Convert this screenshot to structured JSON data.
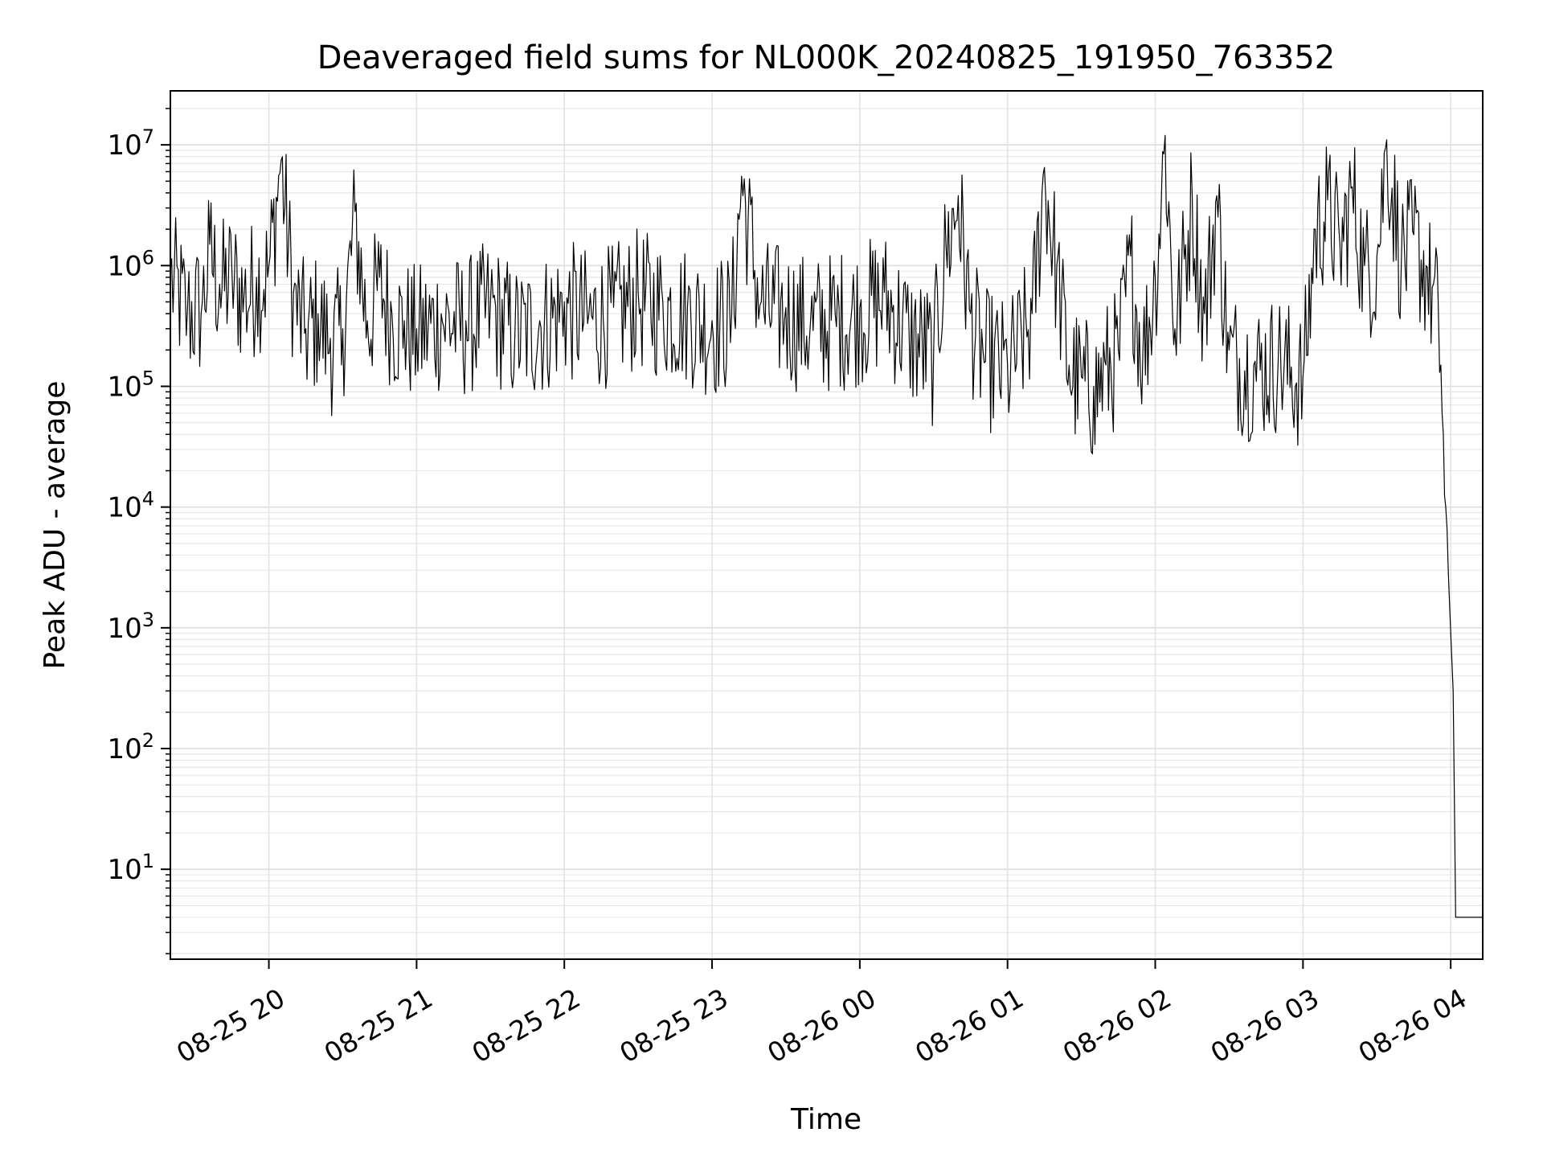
{
  "chart_data": {
    "type": "line",
    "title": "Deaveraged field sums for NL000K_20240825_191950_763352",
    "xlabel": "Time",
    "ylabel": "Peak ADU - average",
    "yscale": "log",
    "ylim": [
      1.8,
      28000000
    ],
    "xlim": [
      "2024-08-25 19:20",
      "2024-08-26 04:13"
    ],
    "grid": true,
    "legend": "none",
    "x_ticks": [
      {
        "value": "2024-08-25 20:00",
        "label": "08-25 20"
      },
      {
        "value": "2024-08-25 21:00",
        "label": "08-25 21"
      },
      {
        "value": "2024-08-25 22:00",
        "label": "08-25 22"
      },
      {
        "value": "2024-08-25 23:00",
        "label": "08-25 23"
      },
      {
        "value": "2024-08-26 00:00",
        "label": "08-26 00"
      },
      {
        "value": "2024-08-26 01:00",
        "label": "08-26 01"
      },
      {
        "value": "2024-08-26 02:00",
        "label": "08-26 02"
      },
      {
        "value": "2024-08-26 03:00",
        "label": "08-26 03"
      },
      {
        "value": "2024-08-26 04:00",
        "label": "08-26 04"
      }
    ],
    "y_ticks": [
      {
        "value": 10,
        "base": "10",
        "exp": "1"
      },
      {
        "value": 100,
        "base": "10",
        "exp": "2"
      },
      {
        "value": 1000,
        "base": "10",
        "exp": "3"
      },
      {
        "value": 10000,
        "base": "10",
        "exp": "4"
      },
      {
        "value": 100000,
        "base": "10",
        "exp": "5"
      },
      {
        "value": 1000000,
        "base": "10",
        "exp": "6"
      },
      {
        "value": 10000000,
        "base": "10",
        "exp": "7"
      }
    ],
    "series": [
      {
        "color": "#000000",
        "x": [
          "2024-08-25 19:20",
          "2024-08-25 19:27",
          "2024-08-25 19:33",
          "2024-08-25 19:36",
          "2024-08-25 19:40",
          "2024-08-25 19:45",
          "2024-08-25 19:50",
          "2024-08-25 19:55",
          "2024-08-25 20:00",
          "2024-08-25 20:04",
          "2024-08-25 20:05",
          "2024-08-25 20:10",
          "2024-08-25 20:15",
          "2024-08-25 20:20",
          "2024-08-25 20:25",
          "2024-08-25 20:30",
          "2024-08-25 20:35",
          "2024-08-25 20:40",
          "2024-08-25 20:45",
          "2024-08-25 20:50",
          "2024-08-25 20:55",
          "2024-08-25 21:00",
          "2024-08-25 21:10",
          "2024-08-25 21:20",
          "2024-08-25 21:30",
          "2024-08-25 21:40",
          "2024-08-25 21:50",
          "2024-08-25 22:00",
          "2024-08-25 22:10",
          "2024-08-25 22:20",
          "2024-08-25 22:30",
          "2024-08-25 22:40",
          "2024-08-25 22:50",
          "2024-08-25 23:00",
          "2024-08-25 23:08",
          "2024-08-25 23:12",
          "2024-08-25 23:20",
          "2024-08-25 23:30",
          "2024-08-25 23:40",
          "2024-08-25 23:50",
          "2024-08-26 00:00",
          "2024-08-26 00:10",
          "2024-08-26 00:20",
          "2024-08-26 00:30",
          "2024-08-26 00:35",
          "2024-08-26 00:40",
          "2024-08-26 00:45",
          "2024-08-26 00:50",
          "2024-08-26 01:00",
          "2024-08-26 01:10",
          "2024-08-26 01:15",
          "2024-08-26 01:20",
          "2024-08-26 01:25",
          "2024-08-26 01:30",
          "2024-08-26 01:35",
          "2024-08-26 01:40",
          "2024-08-26 01:45",
          "2024-08-26 01:50",
          "2024-08-26 01:55",
          "2024-08-26 02:00",
          "2024-08-26 02:04",
          "2024-08-26 02:08",
          "2024-08-26 02:15",
          "2024-08-26 02:20",
          "2024-08-26 02:25",
          "2024-08-26 02:30",
          "2024-08-26 02:40",
          "2024-08-26 02:50",
          "2024-08-26 03:00",
          "2024-08-26 03:05",
          "2024-08-26 03:10",
          "2024-08-26 03:15",
          "2024-08-26 03:20",
          "2024-08-26 03:25",
          "2024-08-26 03:30",
          "2024-08-26 03:34",
          "2024-08-26 03:40",
          "2024-08-26 03:45",
          "2024-08-26 03:50",
          "2024-08-26 03:55",
          "2024-08-26 03:56",
          "2024-08-26 03:57",
          "2024-08-26 03:58",
          "2024-08-26 03:59",
          "2024-08-26 04:00",
          "2024-08-26 04:01",
          "2024-08-26 04:02",
          "2024-08-26 04:13"
        ],
        "y": [
          900000,
          450000,
          500000,
          1500000,
          700000,
          900000,
          600000,
          800000,
          1000000,
          5600000,
          7500000,
          600000,
          300000,
          400000,
          250000,
          300000,
          2800000,
          350000,
          800000,
          400000,
          350000,
          300000,
          400000,
          350000,
          500000,
          300000,
          350000,
          500000,
          400000,
          450000,
          600000,
          500000,
          450000,
          350000,
          400000,
          5500000,
          500000,
          450000,
          350000,
          400000,
          450000,
          600000,
          300000,
          200000,
          1500000,
          3800000,
          400000,
          200000,
          150000,
          400000,
          6500000,
          1000000,
          150000,
          120000,
          100000,
          150000,
          200000,
          1200000,
          200000,
          800000,
          12000000,
          300000,
          3800000,
          400000,
          3800000,
          200000,
          150000,
          180000,
          120000,
          2000000,
          3500000,
          1500000,
          4500000,
          1000000,
          1200000,
          11000000,
          1200000,
          1800000,
          1000000,
          400000,
          150000,
          40000,
          10000,
          3000,
          900,
          300,
          4,
          4
        ]
      }
    ]
  }
}
